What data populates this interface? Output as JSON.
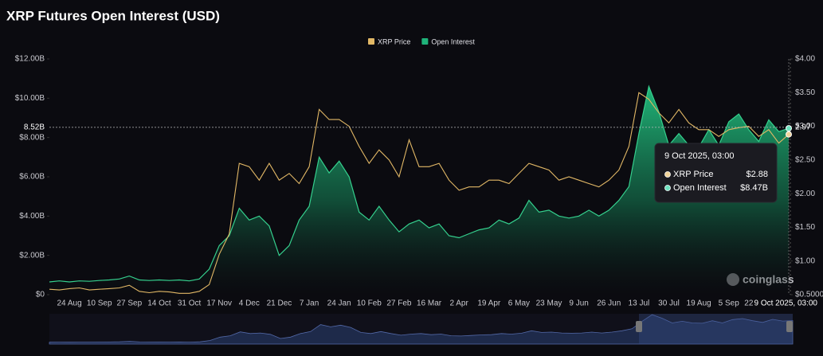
{
  "chart_data": {
    "type": "line-area",
    "title": "XRP Futures Open Interest (USD)",
    "categories": [
      null,
      null,
      "24 Aug",
      null,
      null,
      "10 Sep",
      null,
      null,
      "27 Sep",
      null,
      null,
      "14 Oct",
      null,
      null,
      "31 Oct",
      null,
      null,
      "17 Nov",
      null,
      null,
      "4 Dec",
      null,
      null,
      "21 Dec",
      null,
      null,
      "7 Jan",
      null,
      null,
      "24 Jan",
      null,
      null,
      "10 Feb",
      null,
      null,
      "27 Feb",
      null,
      null,
      "16 Mar",
      null,
      null,
      "2 Apr",
      null,
      null,
      "19 Apr",
      null,
      null,
      "6 May",
      null,
      null,
      "23 May",
      null,
      null,
      "9 Jun",
      null,
      null,
      "26 Jun",
      null,
      null,
      "13 Jul",
      null,
      null,
      "30 Jul",
      null,
      null,
      "19 Aug",
      null,
      null,
      "5 Sep",
      null,
      "22",
      null,
      null,
      null,
      "9 Oct 2025, 03:00"
    ],
    "series": [
      {
        "name": "XRP Price",
        "color": "#e2b866",
        "axis": "y2",
        "values": [
          0.58,
          0.57,
          0.59,
          0.6,
          0.57,
          0.58,
          0.59,
          0.6,
          0.64,
          0.55,
          0.53,
          0.55,
          0.54,
          0.52,
          0.52,
          0.55,
          0.65,
          1.1,
          1.4,
          2.45,
          2.4,
          2.2,
          2.45,
          2.2,
          2.3,
          2.15,
          2.4,
          3.25,
          3.1,
          3.1,
          3.0,
          2.7,
          2.45,
          2.65,
          2.5,
          2.25,
          2.8,
          2.4,
          2.4,
          2.45,
          2.2,
          2.05,
          2.1,
          2.1,
          2.2,
          2.2,
          2.15,
          2.3,
          2.45,
          2.4,
          2.35,
          2.2,
          2.25,
          2.2,
          2.15,
          2.1,
          2.2,
          2.35,
          2.7,
          3.5,
          3.4,
          3.2,
          3.05,
          3.25,
          3.05,
          2.95,
          2.95,
          2.85,
          2.95,
          2.98,
          3.0,
          2.85,
          2.95,
          2.75,
          2.88
        ]
      },
      {
        "name": "Open Interest",
        "color": "#1fb37a",
        "values": [
          0.65,
          0.7,
          0.65,
          0.7,
          0.68,
          0.72,
          0.75,
          0.8,
          0.95,
          0.75,
          0.72,
          0.75,
          0.72,
          0.75,
          0.7,
          0.8,
          1.3,
          2.5,
          3.0,
          4.4,
          3.8,
          4.0,
          3.5,
          2.0,
          2.5,
          3.8,
          4.5,
          7.0,
          6.2,
          6.8,
          6.0,
          4.2,
          3.8,
          4.5,
          3.8,
          3.2,
          3.6,
          3.8,
          3.4,
          3.6,
          3.0,
          2.9,
          3.1,
          3.3,
          3.4,
          3.8,
          3.6,
          3.9,
          4.8,
          4.2,
          4.3,
          4.0,
          3.9,
          4.0,
          4.3,
          4.0,
          4.3,
          4.8,
          5.5,
          8.2,
          10.6,
          9.3,
          7.6,
          8.2,
          7.6,
          7.5,
          8.4,
          7.6,
          8.8,
          9.2,
          8.4,
          7.8,
          8.9,
          8.3,
          8.47
        ]
      }
    ],
    "ylim": [
      0,
      12
    ],
    "yticks": [
      {
        "value": 0,
        "label": "$0"
      },
      {
        "value": 2,
        "label": "$2.00B"
      },
      {
        "value": 4,
        "label": "$4.00B"
      },
      {
        "value": 6,
        "label": "$6.00B"
      },
      {
        "value": 8,
        "label": "$8.00B"
      },
      {
        "value": 10,
        "label": "$10.00B"
      },
      {
        "value": 12,
        "label": "$12.00B"
      }
    ],
    "y2lim": [
      0.5,
      4.0
    ],
    "y2ticks": [
      {
        "value": 0.5,
        "label": "$0.5000"
      },
      {
        "value": 1,
        "label": "$1.00"
      },
      {
        "value": 1.5,
        "label": "$1.50"
      },
      {
        "value": 2,
        "label": "$2.00"
      },
      {
        "value": 2.5,
        "label": "$2.50"
      },
      {
        "value": 3,
        "label": "$3.00"
      },
      {
        "value": 3.5,
        "label": "$3.50"
      },
      {
        "value": 4,
        "label": "$4.00"
      }
    ],
    "crosshair": {
      "y": {
        "value": 8.52,
        "label": "8.52B"
      },
      "y2": 2.97
    },
    "tooltip": {
      "values": [
        "$2.88",
        "$8.47B"
      ]
    },
    "watermark": "coinglass",
    "grid": false
  }
}
